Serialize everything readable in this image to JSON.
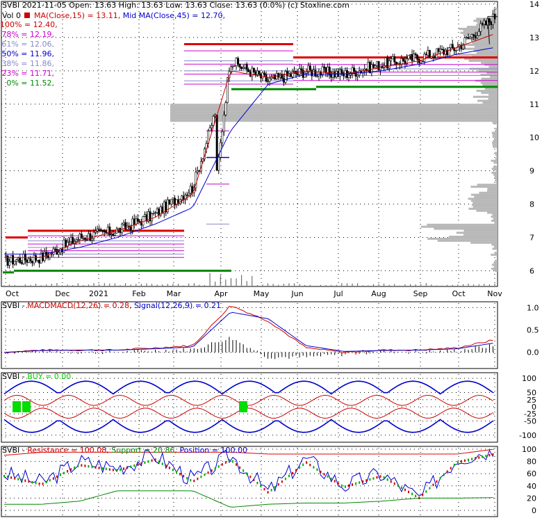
{
  "colors": {
    "price": "#000000",
    "ma15": "#cc0000",
    "ma45": "#0000cc",
    "resistance": "#dd0000",
    "support": "#008800",
    "fib": "#cc00cc",
    "volume_profile": "#b8b8b8",
    "macd": "#0000cc",
    "signal": "#cc0000",
    "buy": "#00dd00",
    "position": "#0000cc"
  },
  "header": {
    "symbol": "SVBI",
    "line1": "2021-11-05 Open: 13.63  High: 13.63  Low: 13.63  Close: 13.63 (0.0%)  (c) Stoxline.com",
    "vol": "Vol 0",
    "ma_fast_label": "MA(Close,15) = 13.11,",
    "ma_slow_label": "Mid MA(Close,45) = 12.70,"
  },
  "fib_levels": [
    {
      "label": "100% = 12.40,",
      "color": "#cc0000",
      "value": 12.4
    },
    {
      "label": "78% = 12.19,",
      "color": "#cc00cc",
      "value": 12.19
    },
    {
      "label": "61% = 12.06,",
      "color": "#8888cc",
      "value": 12.06
    },
    {
      "label": "50% = 11.96,",
      "color": "#0000cc",
      "value": 11.96
    },
    {
      "label": "38% = 11.86,",
      "color": "#8888cc",
      "value": 11.86
    },
    {
      "label": "23% = 11.71,",
      "color": "#cc00cc",
      "value": 11.71
    },
    {
      "label": "0% = 11.52,",
      "color": "#008800",
      "value": 11.52
    }
  ],
  "panels": {
    "macd": {
      "label_symbol": "SVBI - ",
      "label_name": "MACDMACD(12,26) = 0.28,",
      "label_signal": "Signal(12,26,9) = 0.21",
      "y_ticks": [
        "1.0",
        "0.5",
        "0.0"
      ]
    },
    "buy": {
      "label_symbol": "SVBI - ",
      "label_buy": "BUY = 0.00",
      "y_ticks": [
        "100",
        "50",
        "25",
        "0",
        "-25",
        "-50",
        "-100"
      ]
    },
    "position": {
      "label_symbol": "SVBI - ",
      "label_res": "Resistance = 100.08,",
      "label_sup": "Support = 20.86,",
      "label_pos": "Position = 100.00",
      "y_ticks": [
        "100",
        "80",
        "60",
        "40",
        "20",
        "0"
      ]
    }
  },
  "chart_data": [
    {
      "type": "candlestick",
      "title": "SVBI 2021-11-05 Open: 13.63 High: 13.63 Low: 13.63 Close: 13.63 (0.0%)",
      "x_tick_labels": [
        "Oct",
        "Dec",
        "2021",
        "Feb",
        "Mar",
        "Apr",
        "May",
        "Jun",
        "Jul",
        "Aug",
        "Sep",
        "Oct",
        "Nov"
      ],
      "y_tick_labels": [
        "14",
        "13",
        "12",
        "11",
        "10",
        "9",
        "8",
        "7",
        "6"
      ],
      "ylim": [
        5.9,
        14.2
      ],
      "grid": true,
      "series": [
        {
          "name": "Close",
          "x": [
            "Oct",
            "Nov",
            "Dec",
            "2021",
            "Feb",
            "Mar",
            "Apr",
            "May",
            "Jun",
            "Jul",
            "Aug",
            "Sep",
            "Oct",
            "Nov"
          ],
          "values": [
            6.3,
            6.4,
            7.0,
            7.2,
            7.7,
            8.5,
            12.3,
            11.7,
            12.0,
            11.9,
            12.2,
            12.4,
            12.7,
            13.63
          ]
        },
        {
          "name": "MA(Close,15)",
          "values": [
            6.4,
            6.4,
            6.9,
            7.2,
            7.6,
            8.3,
            12.0,
            11.8,
            12.0,
            11.9,
            12.1,
            12.3,
            12.7,
            13.11
          ]
        },
        {
          "name": "Mid MA(Close,45)",
          "values": [
            6.5,
            6.5,
            6.7,
            7.0,
            7.4,
            7.9,
            10.2,
            11.6,
            11.9,
            11.9,
            12.0,
            12.2,
            12.5,
            12.7
          ]
        }
      ],
      "resistance_levels": [
        7.2,
        12.8,
        12.4,
        7.0
      ],
      "support_levels": [
        6.0,
        11.5
      ]
    },
    {
      "type": "line",
      "title": "SVBI - MACD(12,26) = 0.28, Signal(12,26,9) = 0.21",
      "y_tick_labels": [
        "1.0",
        "0.5",
        "0.0"
      ],
      "ylim": [
        -0.3,
        1.1
      ],
      "series": [
        {
          "name": "MACD",
          "values": [
            0.0,
            0.05,
            0.05,
            0.05,
            0.1,
            0.15,
            1.05,
            0.7,
            0.1,
            0.0,
            0.05,
            0.05,
            0.1,
            0.28
          ]
        },
        {
          "name": "Signal",
          "values": [
            0.0,
            0.04,
            0.05,
            0.05,
            0.08,
            0.12,
            0.9,
            0.75,
            0.15,
            0.02,
            0.04,
            0.05,
            0.08,
            0.21
          ]
        }
      ]
    },
    {
      "type": "line",
      "title": "SVBI - BUY = 0.00",
      "y_tick_labels": [
        "100",
        "50",
        "25",
        "0",
        "-25",
        "-50",
        "-100"
      ],
      "ylim": [
        -110,
        110
      ],
      "series": [
        {
          "name": "BUY",
          "values": [
            0,
            0,
            0,
            0,
            0,
            0,
            0,
            0,
            0,
            0,
            0,
            0,
            0,
            0
          ]
        }
      ]
    },
    {
      "type": "line",
      "title": "SVBI - Resistance = 100.08, Support = 20.86, Position = 100.00",
      "y_tick_labels": [
        "100",
        "80",
        "60",
        "40",
        "20",
        "0"
      ],
      "ylim": [
        0,
        100
      ],
      "series": [
        {
          "name": "Resistance",
          "values": [
            90,
            95,
            95,
            95,
            95,
            95,
            95,
            92,
            92,
            92,
            92,
            92,
            92,
            100.08
          ]
        },
        {
          "name": "Support",
          "values": [
            10,
            10,
            15,
            32,
            32,
            32,
            5,
            10,
            12,
            12,
            15,
            20,
            20,
            20.86
          ]
        },
        {
          "name": "Position",
          "values": [
            60,
            45,
            80,
            70,
            90,
            50,
            90,
            30,
            85,
            40,
            60,
            20,
            85,
            100.0
          ]
        }
      ]
    }
  ]
}
